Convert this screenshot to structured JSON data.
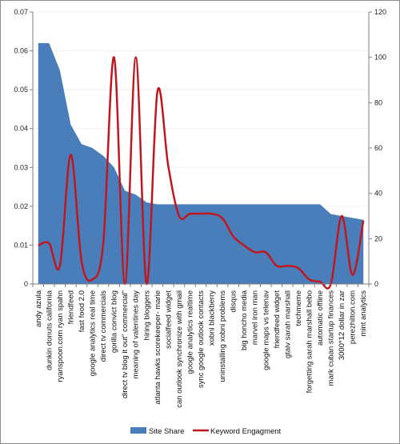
{
  "chart_data": {
    "type": "area+line",
    "title": "",
    "xlabel": "",
    "categories": [
      "andy azula",
      "dunkin donuts california",
      "ryanspoon.com ryan spahn",
      "friendfeed",
      "fast food 2.0",
      "google analytics real time",
      "direct tv commercials",
      "gorilla convict blog",
      "direct tv blog it out\" commercial\"",
      "meaning of valentines day",
      "hiring bloggers",
      "atlanta hawks scorekeeper- marie",
      "socialfeed widget",
      "can outlook synchronize with gmail",
      "google analytics realtime",
      "sync google outlook contacts",
      "xobni blackberry",
      "uninstalling xobni problems",
      "disqus",
      "big honcho media",
      "marvel iron man",
      "google maps vs telenav",
      "friendfeed widget",
      "gtaiv sarah marshall",
      "techmeme",
      "forgetting sarah marshall bebo",
      "automatic offline",
      "mark cuban startup finances",
      "3000*12 dollar in zar",
      "perezhilton.com",
      "mint analytics"
    ],
    "yleft": {
      "min": 0,
      "max": 0.07,
      "ticks": [
        "0",
        "0.01",
        "0.02",
        "0.03",
        "0.04",
        "0.05",
        "0.06",
        "0.07"
      ]
    },
    "yright": {
      "min": 0,
      "max": 120,
      "ticks": [
        "0",
        "20",
        "40",
        "60",
        "80",
        "100",
        "120"
      ]
    },
    "series": [
      {
        "name": "Site Share",
        "kind": "area",
        "axis": "left",
        "color": "#4a7ebb",
        "values": [
          0.062,
          0.062,
          0.055,
          0.041,
          0.036,
          0.035,
          0.033,
          0.03,
          0.024,
          0.023,
          0.021,
          0.0205,
          0.0205,
          0.0205,
          0.0205,
          0.0205,
          0.0205,
          0.0205,
          0.0205,
          0.0205,
          0.0205,
          0.0205,
          0.0205,
          0.0205,
          0.0205,
          0.0205,
          0.0205,
          0.018,
          0.0175,
          0.017,
          0.0165
        ]
      },
      {
        "name": "Keyword Engagment",
        "kind": "line",
        "axis": "right",
        "color": "#c0171f",
        "values": [
          17,
          18,
          8,
          57,
          10,
          2,
          18,
          100,
          0,
          100,
          0,
          85,
          52,
          30,
          31,
          31,
          31,
          29,
          21,
          17,
          14,
          14,
          8,
          8,
          7,
          2,
          1,
          0,
          30,
          4,
          28
        ]
      }
    ],
    "legend": {
      "placement": "bottom"
    }
  }
}
